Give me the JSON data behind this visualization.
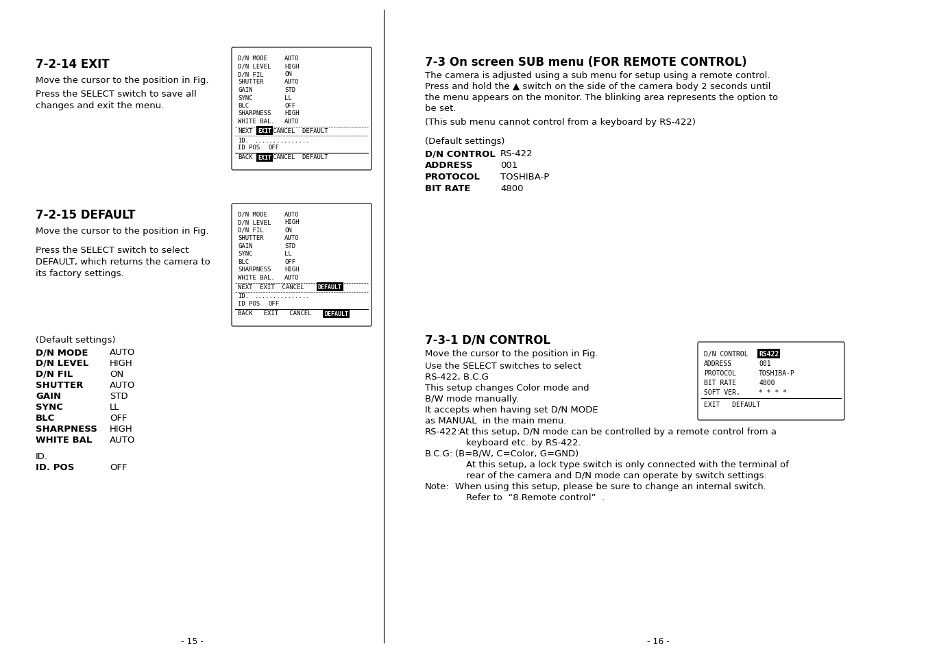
{
  "page_bg": "#ffffff",
  "left_page_num": "- 15 -",
  "right_page_num": "- 16 -",
  "section_724_title": "7-2-14 EXIT",
  "section_724_para1": "Move the cursor to the position in Fig.",
  "section_724_para2a": "Press the SELECT switch to save all",
  "section_724_para2b": "changes and exit the menu.",
  "box1_lines": [
    [
      "D/N MODE",
      "AUTO"
    ],
    [
      "D/N LEVEL",
      "HIGH"
    ],
    [
      "D/N FIL",
      "ON"
    ],
    [
      "SHUTTER",
      "AUTO"
    ],
    [
      "GAIN",
      "STD"
    ],
    [
      "SYNC",
      "LL"
    ],
    [
      "BLC",
      "OFF"
    ],
    [
      "SHARPNESS",
      "HIGH"
    ],
    [
      "WHITE BAL.",
      "AUTO"
    ]
  ],
  "section_725_title": "7-2-15 DEFAULT",
  "section_725_para1": "Move the cursor to the position in Fig.",
  "section_725_para2a": "Press the SELECT switch to select",
  "section_725_para2b": "DEFAULT, which returns the camera to",
  "section_725_para2c": "its factory settings.",
  "section_725_default_header": "(Default settings)",
  "section_725_defaults": [
    [
      "D/N MODE",
      "AUTO"
    ],
    [
      "D/N LEVEL",
      "HIGH"
    ],
    [
      "D/N FIL",
      "ON"
    ],
    [
      "SHUTTER",
      "AUTO"
    ],
    [
      "GAIN",
      "STD"
    ],
    [
      "SYNC",
      "LL"
    ],
    [
      "BLC",
      "OFF"
    ],
    [
      "SHARPNESS",
      "HIGH"
    ],
    [
      "WHITE BAL",
      "AUTO"
    ]
  ],
  "section_725_id": "ID.",
  "section_725_id_pos_label": "ID. POS",
  "section_725_id_pos_val": "OFF",
  "section_73_title": "7-3 On screen SUB menu (FOR REMOTE CONTROL)",
  "section_73_lines": [
    "The camera is adjusted using a sub menu for setup using a remote control.",
    "Press and hold the ▲ switch on the side of the camera body 2 seconds until",
    "the menu appears on the monitor. The blinking area represents the option to",
    "be set."
  ],
  "section_73_para2": "(This sub menu cannot control from a keyboard by RS-422)",
  "section_73_default_header": "(Default settings)",
  "section_73_defaults": [
    [
      "D/N CONTROL",
      "RS-422"
    ],
    [
      "ADDRESS",
      "001"
    ],
    [
      "PROTOCOL",
      "TOSHIBA-P"
    ],
    [
      "BIT RATE",
      "4800"
    ]
  ],
  "section_731_title": "7-3-1 D/N CONTROL",
  "section_731_para1": "Move the cursor to the position in Fig.",
  "section_731_lines": [
    "Use the SELECT switches to select",
    "RS-422, B.C.G",
    "This setup changes Color mode and",
    "B/W mode manually.",
    "It accepts when having set D/N MODE",
    "as MANUAL  in the main menu."
  ],
  "section_731_rs422_label": "RS-422:",
  "section_731_rs422_line1": "At this setup, D/N mode can be controlled by a remote control from a",
  "section_731_rs422_line2": "keyboard etc. by RS-422.",
  "section_731_bcg_label": "B.C.G:",
  "section_731_bcg_line1": "(B=B/W, C=Color, G=GND)",
  "section_731_bcg_line2": "At this setup, a lock type switch is only connected with the terminal of",
  "section_731_bcg_line3": "rear of the camera and D/N mode can operate by switch settings.",
  "section_731_note_label": "Note:",
  "section_731_note_line1": "When using this setup, please be sure to change an internal switch.",
  "section_731_note_line2": "Refer to  “8.Remote control”  .",
  "box3_lines": [
    [
      "D/N CONTROL",
      "RS422"
    ],
    [
      "ADDRESS",
      "001"
    ],
    [
      "PROTOCOL",
      "TOSHIBA-P"
    ],
    [
      "BIT RATE",
      "4800"
    ],
    [
      "SOFT VER.",
      "* * * *"
    ]
  ],
  "box3_nav": "EXIT   DEFAULT"
}
